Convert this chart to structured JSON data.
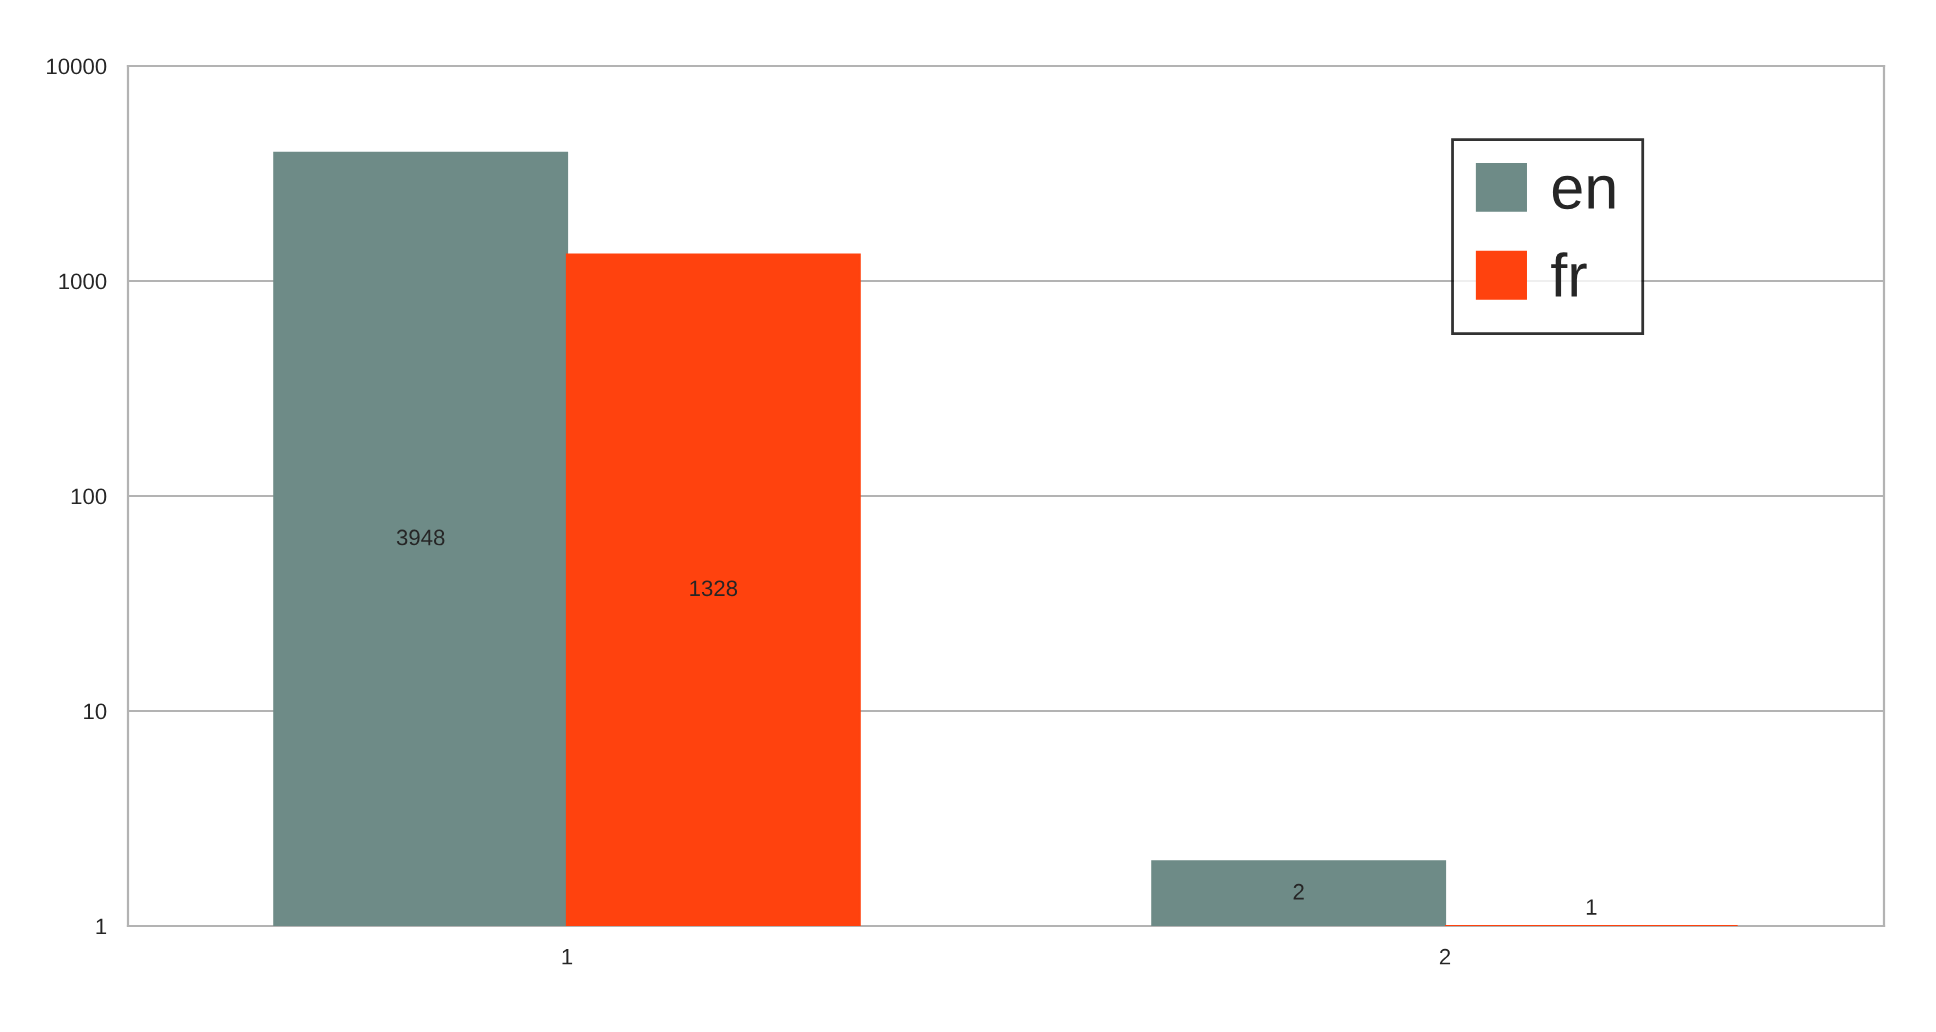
{
  "chart_data": {
    "type": "bar",
    "categories": [
      "1",
      "2"
    ],
    "series": [
      {
        "name": "en",
        "color": "#6e8b87",
        "values": [
          3948,
          2
        ]
      },
      {
        "name": "fr",
        "color": "#ff420e",
        "values": [
          1328,
          1
        ]
      }
    ],
    "log": true,
    "ylim": [
      1,
      10000
    ],
    "yticks": [
      1,
      10,
      100,
      1000,
      10000
    ],
    "grid": "y",
    "legend": "top right",
    "data_labels": true
  }
}
